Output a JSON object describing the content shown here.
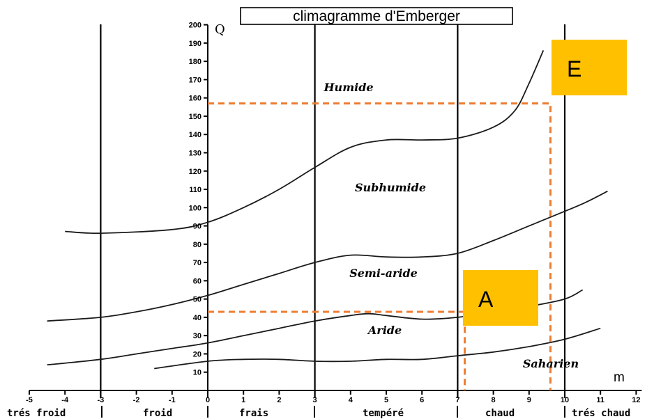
{
  "chart_data": {
    "type": "line",
    "title": "climagramme d'Emberger",
    "xlabel": "m",
    "ylabel": "Q",
    "xlim": [
      -5,
      12
    ],
    "ylim": [
      0,
      200
    ],
    "x_ticks": [
      -5,
      -4,
      -3,
      -2,
      -1,
      0,
      1,
      2,
      3,
      4,
      5,
      6,
      7,
      8,
      9,
      10,
      11,
      12
    ],
    "y_ticks": [
      10,
      20,
      30,
      40,
      50,
      60,
      70,
      80,
      90,
      100,
      110,
      120,
      130,
      140,
      150,
      160,
      170,
      180,
      190,
      200
    ],
    "vertical_lines_x": [
      -3,
      3,
      7,
      10
    ],
    "thermal_zones": [
      "trés froid",
      "froid",
      "frais",
      "tempéré",
      "chaud",
      "trés chaud"
    ],
    "region_labels": [
      "Humide",
      "Subhumide",
      "Semi-aride",
      "Aride",
      "Saharien"
    ],
    "series": [
      {
        "points": [
          [
            -4,
            87
          ],
          [
            -3,
            86
          ],
          [
            -1,
            88
          ],
          [
            0,
            92
          ],
          [
            1,
            100
          ],
          [
            2,
            110
          ],
          [
            3,
            122
          ],
          [
            4,
            133
          ],
          [
            5,
            137
          ],
          [
            6,
            137
          ],
          [
            7,
            138
          ],
          [
            8,
            144
          ],
          [
            8.6,
            153
          ],
          [
            9,
            168
          ],
          [
            9.4,
            186
          ]
        ]
      },
      {
        "points": [
          [
            -4.5,
            38
          ],
          [
            -3,
            40
          ],
          [
            -2,
            43
          ],
          [
            -1,
            47
          ],
          [
            0,
            52
          ],
          [
            1,
            58
          ],
          [
            2,
            64
          ],
          [
            3,
            70
          ],
          [
            4,
            74
          ],
          [
            5,
            73
          ],
          [
            6,
            73
          ],
          [
            7,
            75
          ],
          [
            8,
            82
          ],
          [
            9,
            90
          ],
          [
            10,
            98
          ],
          [
            10.6,
            103
          ],
          [
            11.2,
            109
          ]
        ]
      },
      {
        "points": [
          [
            -4.5,
            14
          ],
          [
            -3,
            17
          ],
          [
            -2,
            20
          ],
          [
            -1,
            23
          ],
          [
            0,
            26
          ],
          [
            1,
            30
          ],
          [
            2,
            34
          ],
          [
            3,
            38
          ],
          [
            4,
            41
          ],
          [
            4.5,
            42
          ],
          [
            5,
            41
          ],
          [
            6,
            39
          ],
          [
            7,
            40
          ],
          [
            8,
            43
          ],
          [
            9,
            46
          ],
          [
            10,
            50
          ],
          [
            10.5,
            55
          ]
        ]
      },
      {
        "points": [
          [
            -1.5,
            12
          ],
          [
            0,
            16
          ],
          [
            1,
            17
          ],
          [
            2,
            17
          ],
          [
            3,
            16
          ],
          [
            4,
            16
          ],
          [
            5,
            17
          ],
          [
            6,
            17
          ],
          [
            7,
            19
          ],
          [
            8,
            21
          ],
          [
            9,
            24
          ],
          [
            10,
            28
          ],
          [
            11,
            34
          ]
        ]
      }
    ],
    "markers": [
      {
        "label": "E",
        "color": "#FFC000",
        "point": {
          "x": 9.6,
          "y": 157
        }
      },
      {
        "label": "A",
        "color": "#FFC000",
        "point": {
          "x": 7.2,
          "y": 43
        }
      }
    ],
    "guide_color": "#ED7D31"
  }
}
